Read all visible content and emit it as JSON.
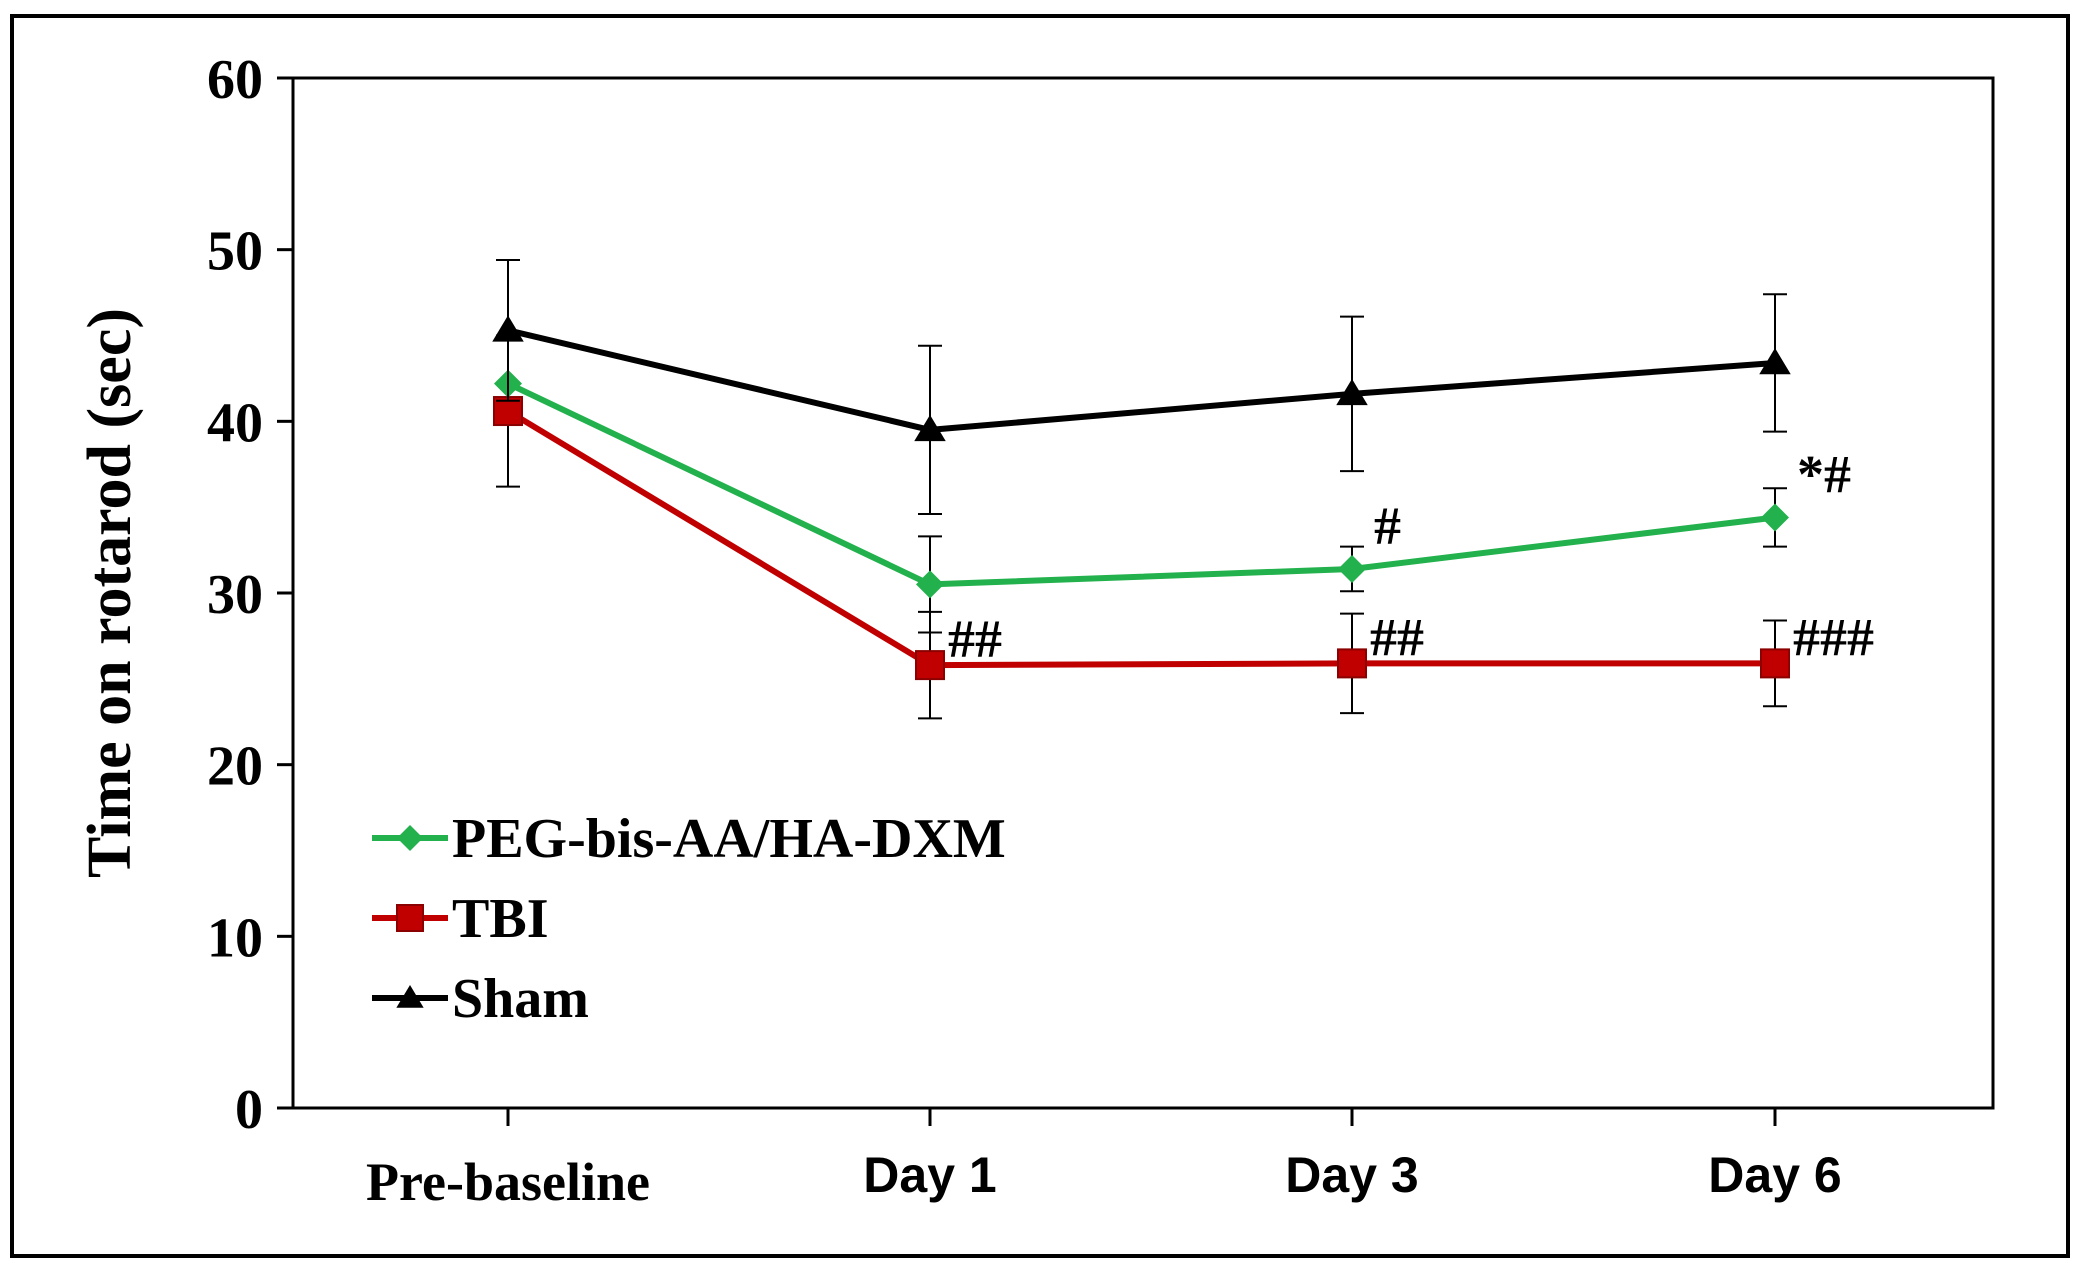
{
  "chart_data": {
    "type": "line",
    "title": "",
    "xlabel": "",
    "ylabel": "Time on rotarod (sec)",
    "ylim": [
      0,
      60
    ],
    "yticks": [
      0,
      10,
      20,
      30,
      40,
      50,
      60
    ],
    "categories": [
      "Pre-baseline",
      "Day 1",
      "Day 3",
      "Day 6"
    ],
    "legend_position": "bottom-left",
    "series": [
      {
        "name": "Sham",
        "color": "#000000",
        "marker": "triangle",
        "values": [
          45.3,
          39.5,
          41.6,
          43.4
        ],
        "errors": [
          4.1,
          4.9,
          4.5,
          4.0
        ],
        "annotations": [
          "",
          "",
          "",
          ""
        ]
      },
      {
        "name": "PEG-bis-AA/HA-DXM",
        "color": "#22b14c",
        "marker": "diamond",
        "values": [
          42.2,
          30.5,
          31.4,
          34.4
        ],
        "errors": [
          0,
          2.8,
          1.3,
          1.7
        ],
        "annotations": [
          "",
          "",
          "#",
          "*#"
        ]
      },
      {
        "name": "TBI",
        "color": "#c00000",
        "marker": "square",
        "values": [
          40.6,
          25.8,
          25.9,
          25.9
        ],
        "errors": [
          4.4,
          3.1,
          2.9,
          2.5
        ],
        "annotations": [
          "",
          "##",
          "##",
          "###"
        ]
      }
    ],
    "legend_order": [
      "PEG-bis-AA/HA-DXM",
      "TBI",
      "Sham"
    ]
  }
}
